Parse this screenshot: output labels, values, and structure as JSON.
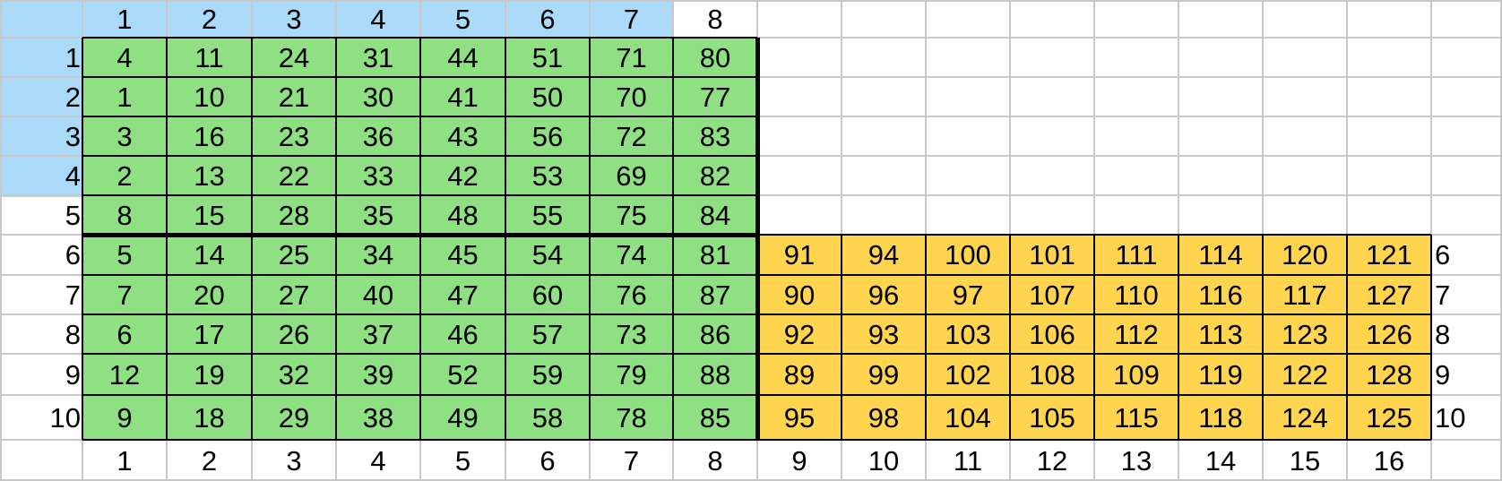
{
  "colors": {
    "background": "#ffffff",
    "light_grid": "#c8c8c8",
    "dark_grid": "#000000",
    "green_block": "#8ee082",
    "blue_block": "#aadaf7",
    "yellow_block": "#ffd44f",
    "text": "#000000"
  },
  "top_header": [
    "1",
    "2",
    "3",
    "4",
    "5",
    "6",
    "7",
    "8",
    "",
    "",
    "",
    "",
    "",
    "",
    "",
    ""
  ],
  "bottom_header": [
    "1",
    "2",
    "3",
    "4",
    "5",
    "6",
    "7",
    "8",
    "9",
    "10",
    "11",
    "12",
    "13",
    "14",
    "15",
    "16"
  ],
  "left_labels": [
    "1",
    "2",
    "3",
    "4",
    "5",
    "6",
    "7",
    "8",
    "9",
    "10"
  ],
  "right_labels": [
    "",
    "",
    "",
    "",
    "",
    "6",
    "7",
    "8",
    "9",
    "10"
  ],
  "green_values": [
    [
      "4",
      "11",
      "24",
      "31",
      "44",
      "51",
      "71",
      "80"
    ],
    [
      "1",
      "10",
      "21",
      "30",
      "41",
      "50",
      "70",
      "77"
    ],
    [
      "3",
      "16",
      "23",
      "36",
      "43",
      "56",
      "72",
      "83"
    ],
    [
      "2",
      "13",
      "22",
      "33",
      "42",
      "53",
      "69",
      "82"
    ],
    [
      "8",
      "15",
      "28",
      "35",
      "48",
      "55",
      "75",
      "84"
    ],
    [
      "5",
      "14",
      "25",
      "34",
      "45",
      "54",
      "74",
      "81"
    ],
    [
      "7",
      "20",
      "27",
      "40",
      "47",
      "60",
      "76",
      "87"
    ],
    [
      "6",
      "17",
      "26",
      "37",
      "46",
      "57",
      "73",
      "86"
    ],
    [
      "12",
      "19",
      "32",
      "39",
      "52",
      "59",
      "79",
      "88"
    ],
    [
      "9",
      "18",
      "29",
      "38",
      "49",
      "58",
      "78",
      "85"
    ]
  ],
  "yellow_values": [
    [
      "91",
      "94",
      "100",
      "101",
      "111",
      "114",
      "120",
      "121"
    ],
    [
      "90",
      "96",
      "97",
      "107",
      "110",
      "116",
      "117",
      "127"
    ],
    [
      "92",
      "93",
      "103",
      "106",
      "112",
      "113",
      "123",
      "126"
    ],
    [
      "89",
      "99",
      "102",
      "108",
      "109",
      "119",
      "122",
      "128"
    ],
    [
      "95",
      "98",
      "104",
      "105",
      "115",
      "118",
      "124",
      "125"
    ]
  ]
}
